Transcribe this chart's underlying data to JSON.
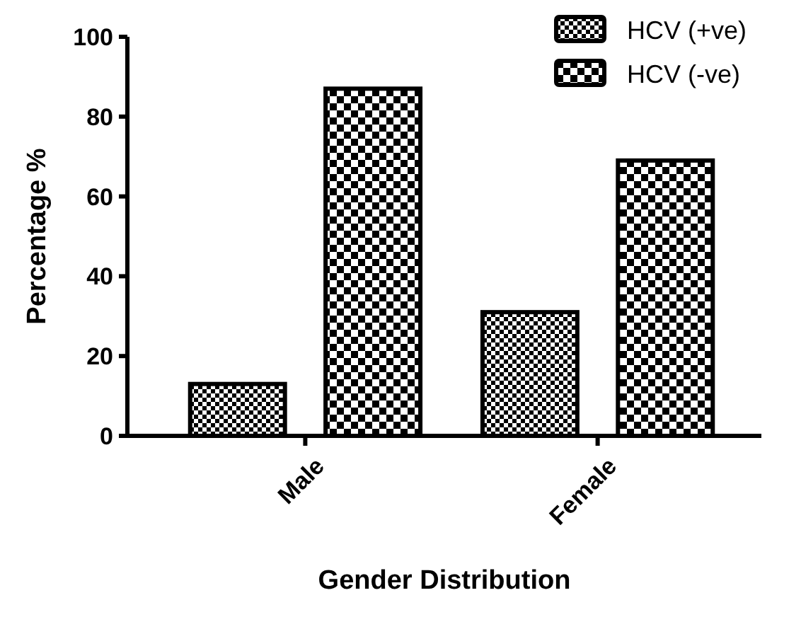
{
  "chart_data": {
    "type": "bar",
    "xlabel": "Gender Distribution",
    "ylabel": "Percentage %",
    "categories": [
      "Male",
      "Female"
    ],
    "series": [
      {
        "name": "HCV (+ve)",
        "color": "#000000",
        "values": [
          13,
          31
        ]
      },
      {
        "name": "HCV (-ve)",
        "color": "#000000",
        "values": [
          87,
          69
        ]
      }
    ],
    "ylim": [
      0,
      100
    ],
    "yticks": [
      0,
      20,
      40,
      60,
      80,
      100
    ],
    "legend": "top right",
    "grid": false
  }
}
